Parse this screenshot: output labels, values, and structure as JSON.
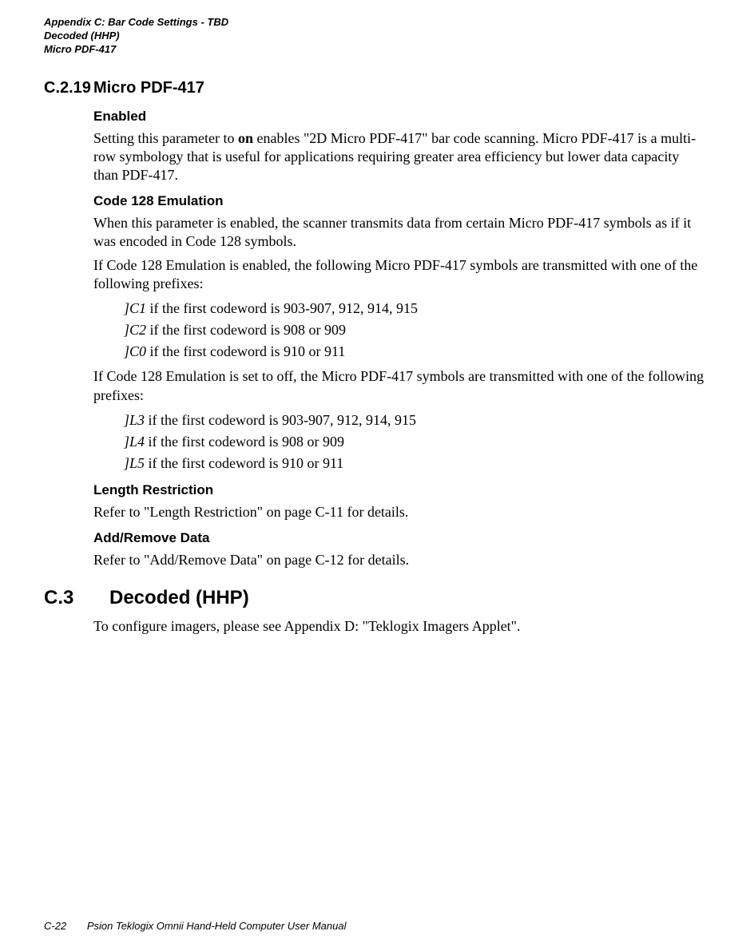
{
  "header": {
    "line1": "Appendix C: Bar Code Settings - TBD",
    "line2": "Decoded (HHP)",
    "line3": "Micro PDF-417"
  },
  "section1": {
    "number": "C.2.19",
    "title": "Micro PDF-417"
  },
  "enabled": {
    "heading": "Enabled",
    "text_pre": "Setting this parameter to ",
    "text_bold": "on",
    "text_post": " enables \"2D Micro PDF-417\" bar code scanning. Micro PDF-417 is a multi-row symbology that is useful for applications requiring greater area efficiency but lower data capacity than PDF-417."
  },
  "code128": {
    "heading": "Code 128 Emulation",
    "para1": "When this parameter is enabled, the scanner transmits data from certain Micro PDF-417 symbols as if it was encoded in Code 128 symbols.",
    "para2": "If Code 128 Emulation is enabled, the following Micro PDF-417 symbols are transmitted with one of the following prefixes:",
    "list1": [
      {
        "code": "]C1",
        "rest": " if the first codeword is 903-907, 912, 914, 915"
      },
      {
        "code": "]C2",
        "rest": " if the first codeword is 908 or 909"
      },
      {
        "code": "]C0",
        "rest": " if the first codeword is 910 or 911"
      }
    ],
    "para3": "If Code 128 Emulation is set to off, the Micro PDF-417 symbols are transmitted with one of the following prefixes:",
    "list2": [
      {
        "code": "]L3",
        "rest": " if the first codeword is 903-907, 912, 914, 915"
      },
      {
        "code": "]L4",
        "rest": " if the first codeword is 908 or 909"
      },
      {
        "code": "]L5",
        "rest": " if the first codeword is 910 or 911"
      }
    ]
  },
  "length": {
    "heading": "Length Restriction",
    "text": "Refer to \"Length Restriction\" on page C-11 for details."
  },
  "addremove": {
    "heading": "Add/Remove Data",
    "text": "Refer to \"Add/Remove Data\" on page C-12 for details."
  },
  "section2": {
    "number": "C.3",
    "title": "Decoded (HHP)",
    "text": "To configure imagers, please see Appendix D: \"Teklogix Imagers Applet\"."
  },
  "footer": {
    "pagenum": "C-22",
    "title": "Psion Teklogix Omnii Hand-Held Computer User Manual"
  }
}
